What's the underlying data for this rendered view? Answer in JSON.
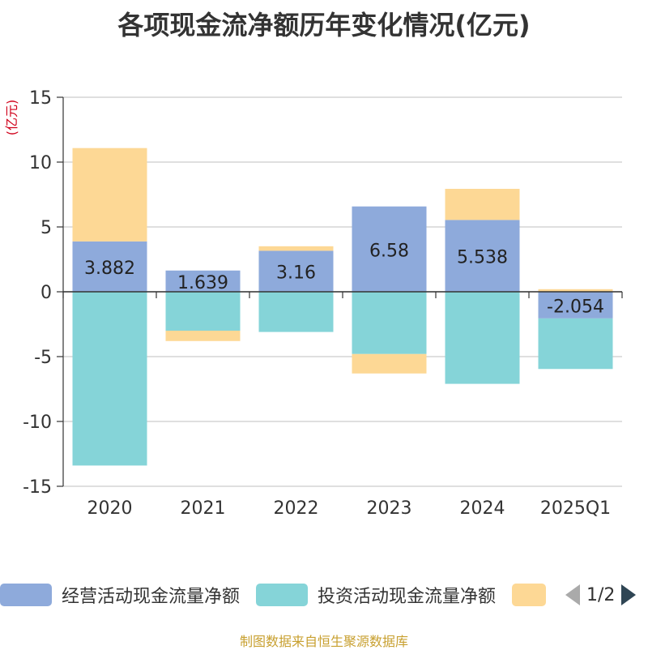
{
  "chart_data": {
    "type": "bar",
    "stacked": true,
    "title": "各项现金流净额历年变化情况(亿元)",
    "ylabel": "(亿元)",
    "ylim": [
      -15,
      15
    ],
    "yticks": [
      15,
      10,
      5,
      0,
      -5,
      -10,
      -15
    ],
    "categories": [
      "2020",
      "2021",
      "2022",
      "2023",
      "2024",
      "2025Q1"
    ],
    "series": [
      {
        "name": "经营活动现金流量净额",
        "color": "#8eaadb",
        "values": [
          3.882,
          1.639,
          3.16,
          6.58,
          5.538,
          -2.054
        ],
        "labels": [
          "3.882",
          "1.639",
          "3.16",
          "6.58",
          "5.538",
          "-2.054"
        ]
      },
      {
        "name": "投资活动现金流量净额",
        "color": "#85d4d8",
        "values": [
          -13.4,
          -3.0,
          -3.1,
          -4.8,
          -7.1,
          -3.9
        ]
      },
      {
        "name": "",
        "color": "#fdd895",
        "values": [
          7.2,
          -0.8,
          0.35,
          -1.5,
          2.4,
          0.2
        ]
      }
    ]
  },
  "legend": {
    "page_indicator": "1/2"
  },
  "source": "制图数据来自恒生聚源数据库"
}
